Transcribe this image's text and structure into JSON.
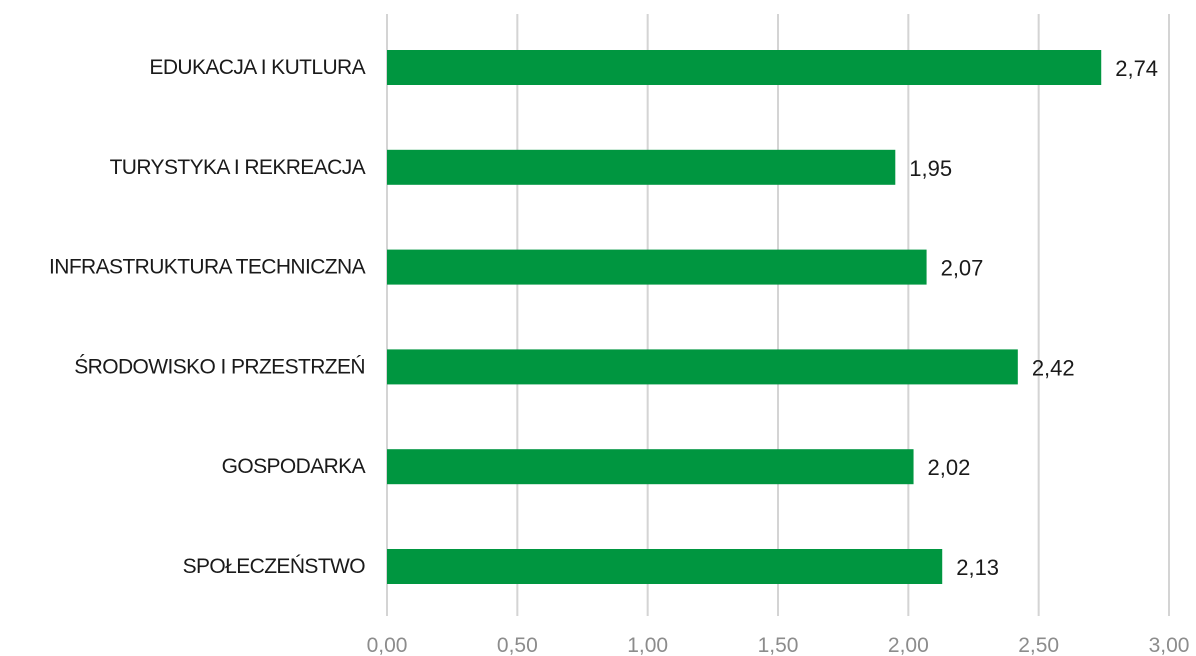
{
  "chart_data": {
    "type": "bar",
    "orientation": "horizontal",
    "categories": [
      "EDUKACJA I KUTLURA",
      "TURYSTYKA I REKREACJA",
      "INFRASTRUKTURA TECHNICZNA",
      "ŚRODOWISKO I PRZESTRZEŃ",
      "GOSPODARKA",
      "SPOŁECZEŃSTWO"
    ],
    "values": [
      2.74,
      1.95,
      2.07,
      2.42,
      2.02,
      2.13
    ],
    "value_labels": [
      "2,74",
      "1,95",
      "2,07",
      "2,42",
      "2,02",
      "2,13"
    ],
    "xlim": [
      0,
      3
    ],
    "x_ticks": [
      0,
      0.5,
      1,
      1.5,
      2,
      2.5,
      3
    ],
    "x_tick_labels": [
      "0,00",
      "0,50",
      "1,00",
      "1,50",
      "2,00",
      "2,50",
      "3,00"
    ],
    "grid": true,
    "legend": "none",
    "title": "",
    "xlabel": "",
    "ylabel": "",
    "bar_color": "#009640",
    "gridline_color": "#d4d4d4"
  }
}
